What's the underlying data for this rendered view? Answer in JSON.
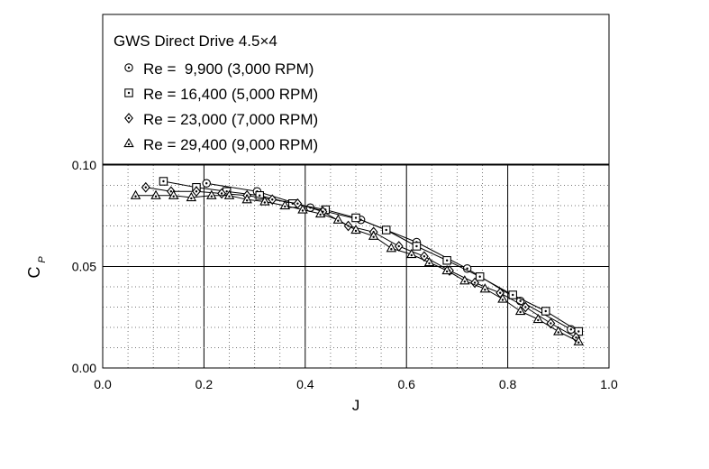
{
  "chart_data": {
    "type": "line",
    "title": "GWS Direct Drive 4.5×4",
    "xlabel": "J",
    "ylabel_main": "C",
    "ylabel_sub": "P",
    "xlim": [
      0.0,
      1.0
    ],
    "ylim": [
      0.0,
      0.125
    ],
    "x_ticks": [
      "0.0",
      "0.2",
      "0.4",
      "0.6",
      "0.8",
      "1.0"
    ],
    "y_ticks": [
      "0.00",
      "0.05",
      "0.10"
    ],
    "grid": true,
    "legend_position": "top-left",
    "series": [
      {
        "name": "Re =  9,900 (3,000 RPM)",
        "marker": "circle-dot",
        "x": [
          0.205,
          0.305,
          0.41,
          0.51,
          0.62,
          0.72,
          0.825,
          0.925
        ],
        "y": [
          0.091,
          0.087,
          0.079,
          0.073,
          0.062,
          0.049,
          0.033,
          0.019
        ]
      },
      {
        "name": "Re = 16,400 (5,000 RPM)",
        "marker": "square-dot",
        "x": [
          0.12,
          0.185,
          0.245,
          0.31,
          0.375,
          0.44,
          0.5,
          0.56,
          0.62,
          0.68,
          0.745,
          0.81,
          0.875,
          0.94
        ],
        "y": [
          0.092,
          0.089,
          0.087,
          0.085,
          0.081,
          0.078,
          0.074,
          0.068,
          0.06,
          0.053,
          0.045,
          0.036,
          0.028,
          0.018
        ]
      },
      {
        "name": "Re = 23,000 (7,000 RPM)",
        "marker": "diamond-dot",
        "x": [
          0.085,
          0.135,
          0.185,
          0.235,
          0.285,
          0.335,
          0.385,
          0.435,
          0.485,
          0.535,
          0.585,
          0.635,
          0.685,
          0.735,
          0.785,
          0.835,
          0.885,
          0.935
        ],
        "y": [
          0.089,
          0.087,
          0.087,
          0.086,
          0.085,
          0.083,
          0.081,
          0.077,
          0.07,
          0.067,
          0.06,
          0.055,
          0.048,
          0.042,
          0.037,
          0.03,
          0.022,
          0.015
        ]
      },
      {
        "name": "Re = 29,400 (9,000 RPM)",
        "marker": "triangle-dot",
        "x": [
          0.065,
          0.105,
          0.14,
          0.175,
          0.215,
          0.25,
          0.285,
          0.32,
          0.36,
          0.395,
          0.43,
          0.465,
          0.5,
          0.535,
          0.57,
          0.61,
          0.645,
          0.68,
          0.715,
          0.755,
          0.79,
          0.825,
          0.86,
          0.9,
          0.94
        ],
        "y": [
          0.085,
          0.085,
          0.085,
          0.084,
          0.085,
          0.085,
          0.083,
          0.082,
          0.08,
          0.078,
          0.076,
          0.073,
          0.068,
          0.065,
          0.059,
          0.056,
          0.052,
          0.048,
          0.043,
          0.039,
          0.034,
          0.028,
          0.024,
          0.018,
          0.013
        ]
      }
    ]
  }
}
